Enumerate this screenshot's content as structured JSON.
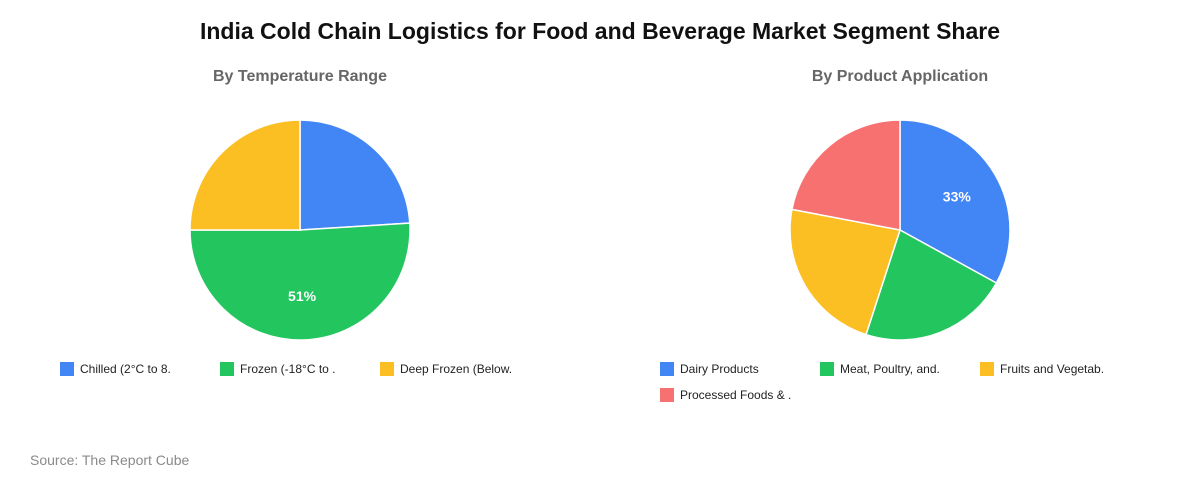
{
  "title": "India Cold Chain Logistics for Food and Beverage Market Segment Share",
  "source": "Source: The Report Cube",
  "chart_data": [
    {
      "type": "pie",
      "title": "By Temperature Range",
      "categories": [
        "Chilled (2°C to 8.",
        "Frozen (-18°C to .",
        "Deep Frozen (Below."
      ],
      "values": [
        24,
        51,
        25
      ],
      "colors": [
        "#4285f4",
        "#22c55e",
        "#fbbf24"
      ],
      "data_labels": [
        "",
        "51%",
        ""
      ]
    },
    {
      "type": "pie",
      "title": "By Product Application",
      "categories": [
        "Dairy Products",
        "Meat, Poultry, and.",
        "Fruits and Vegetab.",
        "Processed Foods & ."
      ],
      "values": [
        33,
        22,
        23,
        22
      ],
      "colors": [
        "#4285f4",
        "#22c55e",
        "#fbbf24",
        "#f87171"
      ],
      "data_labels": [
        "33%",
        "",
        "",
        ""
      ]
    }
  ]
}
